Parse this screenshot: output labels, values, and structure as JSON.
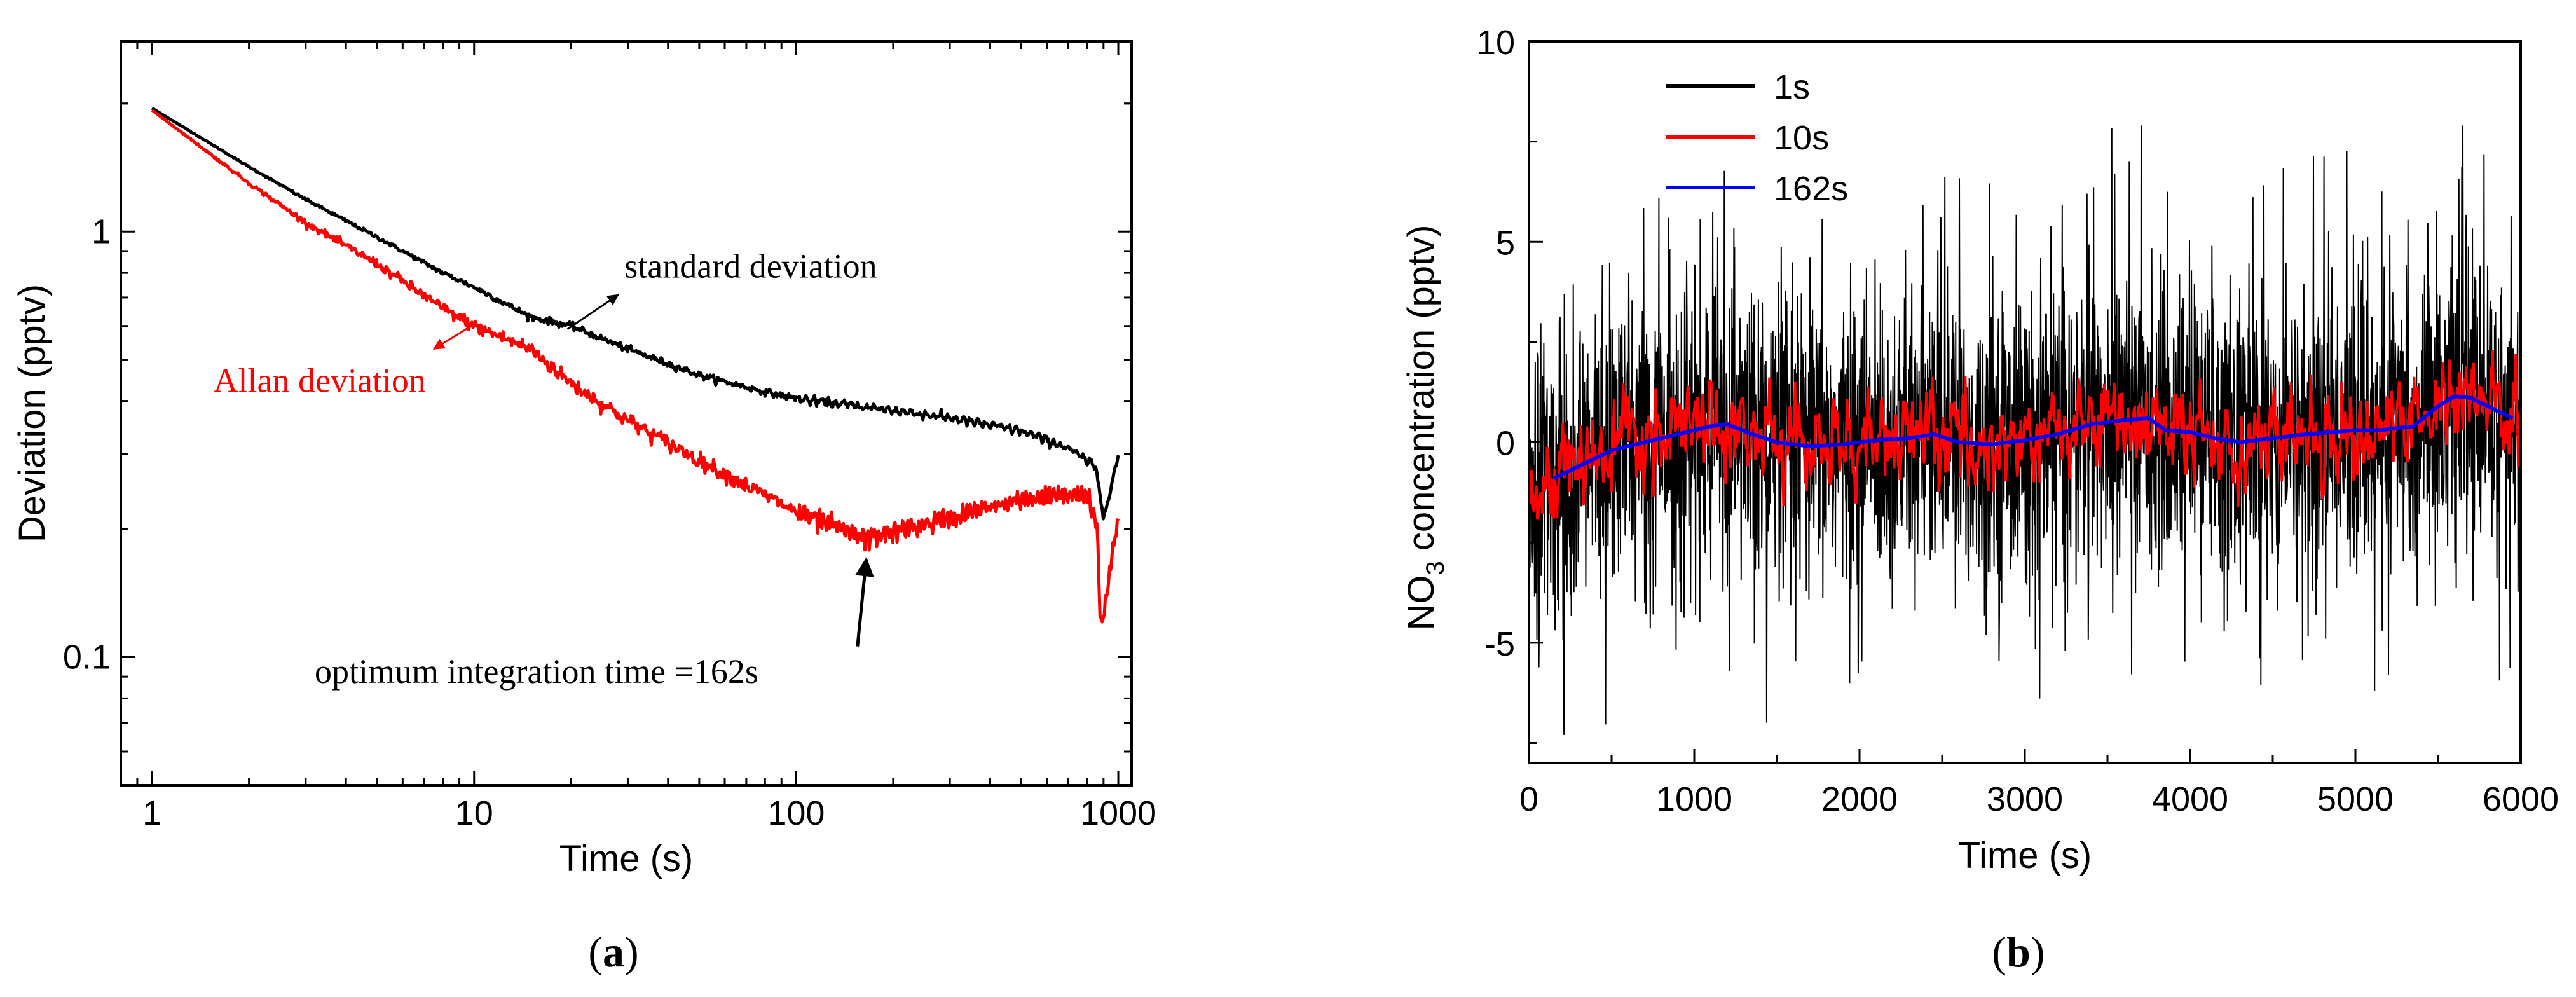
{
  "colors": {
    "black": "#000000",
    "red": "#ff0000",
    "blue": "#0000ff"
  },
  "panel_labels": {
    "a": "a",
    "b": "b"
  },
  "chart_data": [
    {
      "id": "a",
      "type": "line",
      "xscale": "log",
      "yscale": "log",
      "xlabel": "Time (s)",
      "ylabel": "Deviation (pptv)",
      "xlim": [
        0.8,
        1100
      ],
      "ylim": [
        0.05,
        2.8
      ],
      "xticks": [
        {
          "value": 1,
          "label": "1"
        },
        {
          "value": 10,
          "label": "10"
        },
        {
          "value": 100,
          "label": "100"
        },
        {
          "value": 1000,
          "label": "1000"
        }
      ],
      "yticks": [
        {
          "value": 0.1,
          "label": "0.1"
        },
        {
          "value": 1,
          "label": "1"
        }
      ],
      "series": [
        {
          "name": "standard deviation",
          "color": "#000000",
          "points": [
            [
              1,
              1.95
            ],
            [
              2,
              1.42
            ],
            [
              3,
              1.19
            ],
            [
              5,
              0.97
            ],
            [
              8,
              0.8
            ],
            [
              10,
              0.74
            ],
            [
              15,
              0.63
            ],
            [
              20,
              0.6
            ],
            [
              30,
              0.53
            ],
            [
              50,
              0.46
            ],
            [
              80,
              0.42
            ],
            [
              100,
              0.405
            ],
            [
              200,
              0.38
            ],
            [
              300,
              0.365
            ],
            [
              500,
              0.34
            ],
            [
              700,
              0.31
            ],
            [
              850,
              0.28
            ],
            [
              900,
              0.215
            ],
            [
              950,
              0.25
            ],
            [
              1000,
              0.3
            ]
          ],
          "noise": 0.015
        },
        {
          "name": "Allan deviation",
          "color": "#ff0000",
          "points": [
            [
              1,
              1.93
            ],
            [
              2,
              1.3
            ],
            [
              3,
              1.05
            ],
            [
              5,
              0.84
            ],
            [
              8,
              0.66
            ],
            [
              10,
              0.6
            ],
            [
              15,
              0.53
            ],
            [
              20,
              0.44
            ],
            [
              30,
              0.36
            ],
            [
              50,
              0.29
            ],
            [
              80,
              0.24
            ],
            [
              100,
              0.22
            ],
            [
              162,
              0.19
            ],
            [
              250,
              0.205
            ],
            [
              400,
              0.225
            ],
            [
              600,
              0.24
            ],
            [
              800,
              0.24
            ],
            [
              860,
              0.2
            ],
            [
              880,
              0.12
            ],
            [
              910,
              0.13
            ],
            [
              960,
              0.18
            ],
            [
              1000,
              0.21
            ]
          ],
          "noise": 0.035
        }
      ],
      "annotations": [
        {
          "text": "standard deviation",
          "color": "#000000",
          "target": [
            20,
            0.6
          ],
          "label_at": [
            28,
            0.8
          ]
        },
        {
          "text": "Allan deviation",
          "color": "#ff0000",
          "target": [
            10,
            0.6
          ],
          "label_at": [
            6,
            0.45
          ]
        },
        {
          "text": "optimum integration time =162s",
          "color": "#000000",
          "target": [
            162,
            0.16
          ],
          "label_at": [
            162,
            0.1
          ]
        }
      ]
    },
    {
      "id": "b",
      "type": "line",
      "xlabel": "Time (s)",
      "ylabel_main": "NO",
      "ylabel_sub": "3",
      "ylabel_rest": " concentration (pptv)",
      "xlim": [
        0,
        6000
      ],
      "ylim": [
        -8,
        10
      ],
      "xticks": [
        {
          "value": 0,
          "label": "0"
        },
        {
          "value": 1000,
          "label": "1000"
        },
        {
          "value": 2000,
          "label": "2000"
        },
        {
          "value": 3000,
          "label": "3000"
        },
        {
          "value": 4000,
          "label": "4000"
        },
        {
          "value": 5000,
          "label": "5000"
        },
        {
          "value": 6000,
          "label": "6000"
        }
      ],
      "yticks": [
        {
          "value": -5,
          "label": "-5"
        },
        {
          "value": 0,
          "label": "0"
        },
        {
          "value": 5,
          "label": "5"
        },
        {
          "value": 10,
          "label": "10"
        }
      ],
      "legend": [
        {
          "label": "1s",
          "color": "#000000"
        },
        {
          "label": "10s",
          "color": "#ff0000"
        },
        {
          "label": "162s",
          "color": "#0000ff"
        }
      ],
      "series": [
        {
          "name": "1s",
          "color": "#000000",
          "std": 1.8,
          "min": -7.3,
          "max": 7.9
        },
        {
          "name": "10s",
          "color": "#ff0000",
          "std": 0.6,
          "min": -1.9,
          "max": 2.3
        },
        {
          "name": "162s",
          "color": "#0000ff",
          "points": [
            [
              150,
              -0.9
            ],
            [
              300,
              -0.6
            ],
            [
              500,
              -0.2
            ],
            [
              700,
              0
            ],
            [
              900,
              0.2
            ],
            [
              1100,
              0.4
            ],
            [
              1200,
              0.45
            ],
            [
              1350,
              0.2
            ],
            [
              1500,
              0
            ],
            [
              1700,
              -0.1
            ],
            [
              1900,
              -0.05
            ],
            [
              2100,
              0.05
            ],
            [
              2300,
              0.1
            ],
            [
              2450,
              0.2
            ],
            [
              2600,
              0
            ],
            [
              2800,
              -0.05
            ],
            [
              3000,
              0.05
            ],
            [
              3200,
              0.2
            ],
            [
              3400,
              0.45
            ],
            [
              3600,
              0.55
            ],
            [
              3750,
              0.6
            ],
            [
              3850,
              0.3
            ],
            [
              4000,
              0.25
            ],
            [
              4150,
              0.1
            ],
            [
              4300,
              0
            ],
            [
              4500,
              0.1
            ],
            [
              4700,
              0.2
            ],
            [
              4850,
              0.25
            ],
            [
              5000,
              0.3
            ],
            [
              5150,
              0.3
            ],
            [
              5350,
              0.4
            ],
            [
              5500,
              0.9
            ],
            [
              5600,
              1.15
            ],
            [
              5700,
              1.1
            ],
            [
              5800,
              0.9
            ],
            [
              5950,
              0.6
            ]
          ]
        }
      ]
    }
  ]
}
